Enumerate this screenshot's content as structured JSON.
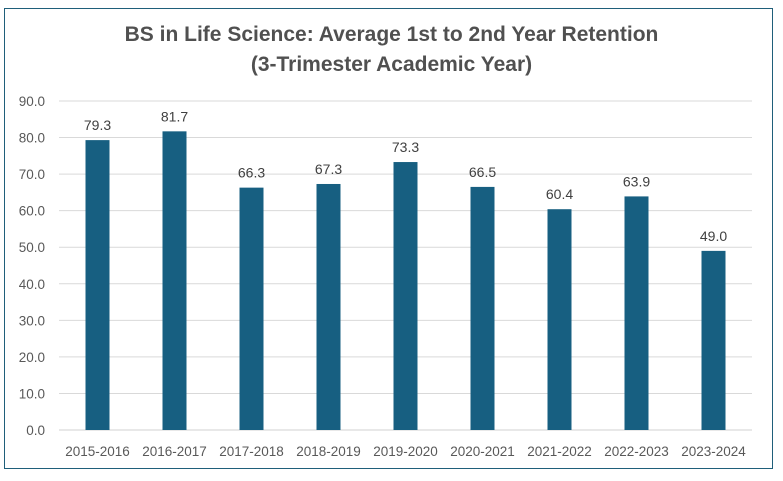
{
  "chart_data": {
    "type": "bar",
    "title": "BS in Life Science: Average 1st to 2nd Year Retention",
    "subtitle": "(3-Trimester Academic Year)",
    "xlabel": "",
    "ylabel": "",
    "categories": [
      "2015-2016",
      "2016-2017",
      "2017-2018",
      "2018-2019",
      "2019-2020",
      "2020-2021",
      "2021-2022",
      "2022-2023",
      "2023-2024"
    ],
    "values": [
      79.3,
      81.7,
      66.3,
      67.3,
      73.3,
      66.5,
      60.4,
      63.9,
      49.0
    ],
    "data_labels": [
      "79.3",
      "81.7",
      "66.3",
      "67.3",
      "73.3",
      "66.5",
      "60.4",
      "63.9",
      "49.0"
    ],
    "ylim": [
      0,
      90
    ],
    "yticks": [
      "0.0",
      "10.0",
      "20.0",
      "30.0",
      "40.0",
      "50.0",
      "60.0",
      "70.0",
      "80.0",
      "90.0"
    ],
    "grid": true,
    "legend": "none",
    "bar_color": "#175f81",
    "frame_color": "#1f5f7a"
  }
}
